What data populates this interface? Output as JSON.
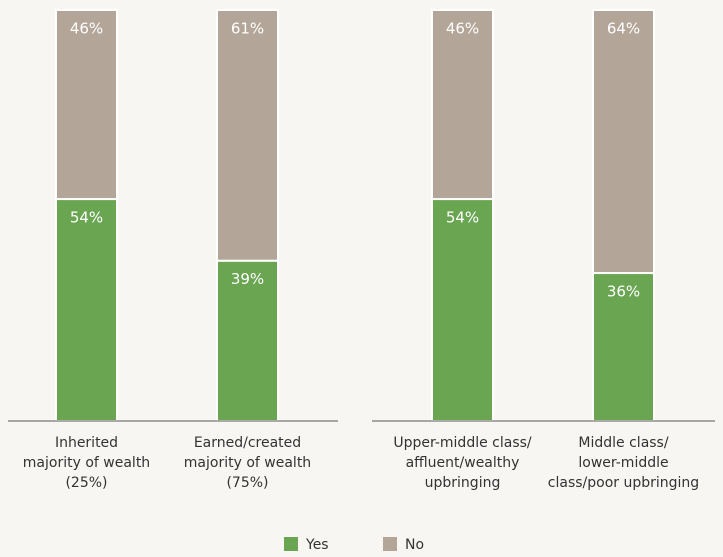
{
  "chart_data": [
    {
      "type": "stacked_bar",
      "categories": [
        [
          "Inherited",
          "majority of wealth",
          "(25%)"
        ],
        [
          "Earned/created",
          "majority of wealth",
          "(75%)"
        ]
      ],
      "series": [
        {
          "name": "Yes",
          "color": "#6aa552",
          "values": [
            54,
            39
          ],
          "value_labels": [
            "54%",
            "39%"
          ]
        },
        {
          "name": "No",
          "color": "#b3a698",
          "values": [
            46,
            61
          ],
          "value_labels": [
            "46%",
            "61%"
          ]
        }
      ],
      "ylim": [
        0,
        100
      ]
    },
    {
      "type": "stacked_bar",
      "categories": [
        [
          "Upper-middle class/",
          "affluent/wealthy",
          "upbringing"
        ],
        [
          "Middle class/",
          "lower-middle",
          "class/poor upbringing"
        ]
      ],
      "series": [
        {
          "name": "Yes",
          "color": "#6aa552",
          "values": [
            54,
            36
          ],
          "value_labels": [
            "54%",
            "36%"
          ]
        },
        {
          "name": "No",
          "color": "#b3a698",
          "values": [
            46,
            64
          ],
          "value_labels": [
            "46%",
            "64%"
          ]
        }
      ],
      "ylim": [
        0,
        100
      ]
    }
  ]
}
